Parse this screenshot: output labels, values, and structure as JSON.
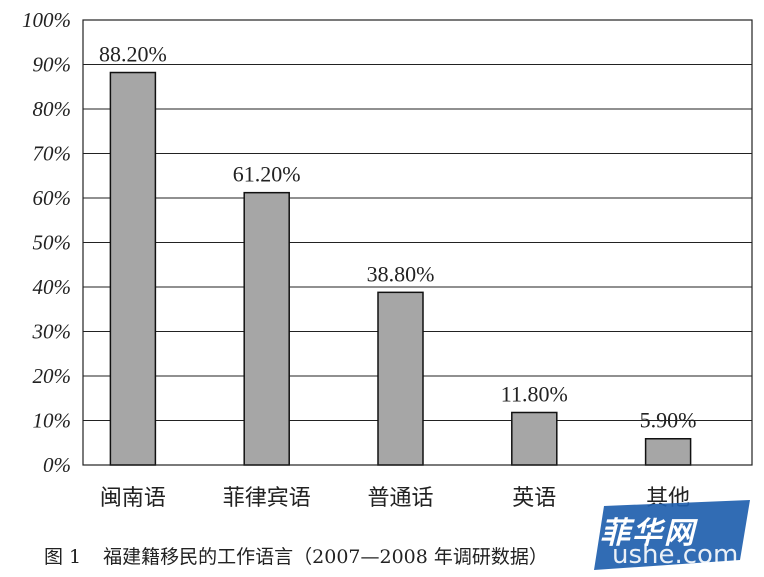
{
  "chart_data": {
    "type": "bar",
    "categories": [
      "闽南语",
      "菲律宾语",
      "普通话",
      "英语",
      "其他"
    ],
    "values": [
      88.2,
      61.2,
      38.8,
      11.8,
      5.9
    ],
    "data_labels": [
      "88.20%",
      "61.20%",
      "38.80%",
      "11.80%",
      "5.90%"
    ],
    "ylim": [
      0,
      100
    ],
    "yticks": [
      "0%",
      "10%",
      "20%",
      "30%",
      "40%",
      "50%",
      "60%",
      "70%",
      "80%",
      "90%",
      "100%"
    ],
    "grid": "horizontal",
    "bar_color": "#a6a6a6",
    "bar_edge_color": "#111111"
  },
  "caption": {
    "figure_no": "图 1",
    "text": "福建籍移民的工作语言（2007—2008 年调研数据）"
  },
  "watermark": {
    "text": "菲华网",
    "sub": "ushe.com"
  }
}
